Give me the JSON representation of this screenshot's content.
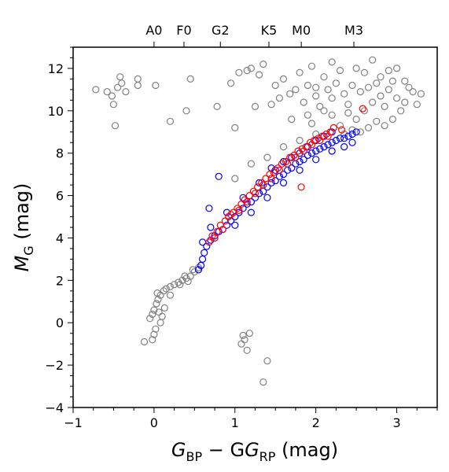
{
  "chart_data": {
    "type": "scatter",
    "title": "",
    "xlabel": {
      "main": "G",
      "sub1": "BP",
      "mid": " − G",
      "sub2": "RP",
      "unit": " (mag)"
    },
    "ylabel": {
      "main": "M",
      "sub": "G",
      "unit": " (mag)"
    },
    "xlim": [
      -1,
      3.5
    ],
    "ylim": [
      13,
      -4
    ],
    "x_ticks": [
      -1,
      0,
      1,
      2,
      3
    ],
    "x_tick_labels": [
      "−1",
      "0",
      "1",
      "2",
      "3"
    ],
    "y_ticks": [
      -4,
      -2,
      0,
      2,
      4,
      6,
      8,
      10,
      12
    ],
    "y_tick_labels": [
      "−4",
      "−2",
      "0",
      "2",
      "4",
      "6",
      "8",
      "10",
      "12"
    ],
    "top_ticks": [
      {
        "label": "A0",
        "x": 0.0
      },
      {
        "label": "F0",
        "x": 0.37
      },
      {
        "label": "G2",
        "x": 0.82
      },
      {
        "label": "K5",
        "x": 1.42
      },
      {
        "label": "M0",
        "x": 1.82
      },
      {
        "label": "M3",
        "x": 2.47
      }
    ],
    "grid": false,
    "marker": "open-circle",
    "series": [
      {
        "color": "#808080",
        "points": [
          [
            -0.12,
            -0.9
          ],
          [
            -0.02,
            -0.8
          ],
          [
            0.0,
            -0.55
          ],
          [
            0.02,
            -0.3
          ],
          [
            -0.05,
            0.2
          ],
          [
            0.08,
            0.0
          ],
          [
            0.1,
            0.3
          ],
          [
            -0.02,
            0.4
          ],
          [
            0.0,
            0.6
          ],
          [
            0.03,
            0.9
          ],
          [
            0.05,
            1.1
          ],
          [
            0.08,
            1.3
          ],
          [
            0.12,
            1.5
          ],
          [
            0.15,
            1.6
          ],
          [
            0.2,
            1.7
          ],
          [
            0.25,
            1.8
          ],
          [
            0.3,
            1.9
          ],
          [
            0.35,
            2.0
          ],
          [
            0.4,
            2.1
          ],
          [
            0.45,
            2.2
          ],
          [
            0.5,
            2.4
          ],
          [
            0.55,
            2.6
          ],
          [
            0.32,
            1.8
          ],
          [
            0.38,
            2.2
          ],
          [
            0.42,
            1.95
          ],
          [
            0.48,
            2.5
          ],
          [
            0.2,
            1.3
          ],
          [
            0.06,
            0.5
          ],
          [
            0.13,
            0.7
          ],
          [
            0.04,
            1.4
          ],
          [
            1.35,
            -2.8
          ],
          [
            1.4,
            -1.8
          ],
          [
            1.15,
            -1.3
          ],
          [
            1.08,
            -1.0
          ],
          [
            1.12,
            -0.8
          ],
          [
            1.18,
            -0.5
          ],
          [
            1.1,
            -0.6
          ],
          [
            -0.72,
            11.0
          ],
          [
            -0.58,
            10.9
          ],
          [
            -0.52,
            10.7
          ],
          [
            -0.5,
            10.3
          ],
          [
            -0.48,
            9.3
          ],
          [
            -0.45,
            11.1
          ],
          [
            -0.4,
            11.3
          ],
          [
            -0.42,
            11.6
          ],
          [
            -0.35,
            10.9
          ],
          [
            -0.2,
            11.2
          ],
          [
            -0.2,
            11.5
          ],
          [
            0.02,
            11.2
          ],
          [
            0.2,
            9.5
          ],
          [
            0.4,
            10.0
          ],
          [
            0.45,
            11.5
          ],
          [
            0.78,
            10.2
          ],
          [
            0.95,
            11.3
          ],
          [
            1.0,
            9.2
          ],
          [
            1.05,
            11.8
          ],
          [
            1.15,
            11.9
          ],
          [
            1.2,
            12.0
          ],
          [
            1.25,
            10.2
          ],
          [
            1.3,
            11.7
          ],
          [
            1.35,
            12.2
          ],
          [
            1.45,
            10.3
          ],
          [
            1.55,
            10.6
          ],
          [
            1.5,
            11.2
          ],
          [
            1.6,
            11.5
          ],
          [
            1.68,
            10.8
          ],
          [
            1.7,
            9.6
          ],
          [
            1.75,
            11.0
          ],
          [
            1.8,
            11.8
          ],
          [
            1.85,
            10.4
          ],
          [
            1.9,
            9.8
          ],
          [
            1.95,
            12.1
          ],
          [
            2.0,
            11.1
          ],
          [
            2.05,
            10.2
          ],
          [
            2.1,
            11.6
          ],
          [
            2.2,
            12.3
          ],
          [
            2.3,
            11.9
          ],
          [
            2.4,
            9.9
          ],
          [
            2.5,
            12.0
          ],
          [
            2.6,
            11.8
          ],
          [
            2.7,
            12.4
          ],
          [
            2.8,
            11.6
          ],
          [
            2.9,
            11.9
          ],
          [
            3.0,
            12.0
          ],
          [
            3.1,
            11.4
          ],
          [
            3.2,
            10.9
          ],
          [
            3.3,
            10.8
          ],
          [
            3.25,
            10.3
          ],
          [
            3.05,
            10.0
          ],
          [
            2.95,
            9.6
          ],
          [
            2.85,
            9.3
          ],
          [
            2.75,
            9.5
          ],
          [
            2.65,
            9.2
          ],
          [
            2.55,
            9.0
          ],
          [
            2.45,
            9.1
          ],
          [
            2.35,
            8.9
          ],
          [
            2.3,
            9.3
          ],
          [
            2.5,
            9.6
          ],
          [
            2.6,
            10.0
          ],
          [
            2.7,
            10.4
          ],
          [
            2.8,
            10.7
          ],
          [
            2.9,
            11.0
          ],
          [
            2.4,
            10.3
          ],
          [
            2.2,
            10.6
          ],
          [
            2.1,
            10.0
          ],
          [
            2.15,
            11.0
          ],
          [
            2.25,
            11.3
          ],
          [
            2.35,
            10.8
          ],
          [
            2.45,
            11.2
          ],
          [
            2.55,
            10.9
          ],
          [
            2.65,
            11.1
          ],
          [
            2.75,
            11.3
          ],
          [
            2.85,
            10.2
          ],
          [
            3.0,
            10.6
          ],
          [
            3.1,
            10.4
          ],
          [
            3.15,
            11.1
          ],
          [
            2.95,
            11.4
          ],
          [
            2.0,
            10.7
          ],
          [
            1.9,
            11.2
          ],
          [
            1.95,
            9.4
          ],
          [
            2.2,
            9.8
          ],
          [
            1.0,
            6.8
          ],
          [
            1.2,
            7.5
          ],
          [
            1.4,
            7.8
          ],
          [
            1.6,
            8.3
          ],
          [
            1.8,
            8.6
          ],
          [
            2.0,
            8.9
          ]
        ]
      },
      {
        "color": "#0000ff",
        "points": [
          [
            0.55,
            2.5
          ],
          [
            0.58,
            2.7
          ],
          [
            0.6,
            3.0
          ],
          [
            0.62,
            3.3
          ],
          [
            0.65,
            3.6
          ],
          [
            0.7,
            3.9
          ],
          [
            0.75,
            4.1
          ],
          [
            0.8,
            4.3
          ],
          [
            0.85,
            4.4
          ],
          [
            0.9,
            4.6
          ],
          [
            0.95,
            4.8
          ],
          [
            1.0,
            5.0
          ],
          [
            1.05,
            5.2
          ],
          [
            1.1,
            5.4
          ],
          [
            1.15,
            5.6
          ],
          [
            1.2,
            5.7
          ],
          [
            1.25,
            5.9
          ],
          [
            1.3,
            6.1
          ],
          [
            1.35,
            6.2
          ],
          [
            1.4,
            6.4
          ],
          [
            1.45,
            6.6
          ],
          [
            1.5,
            6.7
          ],
          [
            1.55,
            6.9
          ],
          [
            1.6,
            7.0
          ],
          [
            1.65,
            7.2
          ],
          [
            1.7,
            7.3
          ],
          [
            1.75,
            7.5
          ],
          [
            1.8,
            7.6
          ],
          [
            1.85,
            7.7
          ],
          [
            1.9,
            7.9
          ],
          [
            1.95,
            8.0
          ],
          [
            2.0,
            8.1
          ],
          [
            2.05,
            8.2
          ],
          [
            2.1,
            8.3
          ],
          [
            2.15,
            8.4
          ],
          [
            2.2,
            8.5
          ],
          [
            2.25,
            8.6
          ],
          [
            2.3,
            8.7
          ],
          [
            2.35,
            8.7
          ],
          [
            2.4,
            8.8
          ],
          [
            2.45,
            8.9
          ],
          [
            2.5,
            9.0
          ],
          [
            0.68,
            5.4
          ],
          [
            0.8,
            6.9
          ],
          [
            0.6,
            3.8
          ],
          [
            0.7,
            4.5
          ],
          [
            0.9,
            5.2
          ],
          [
            1.1,
            5.9
          ],
          [
            1.3,
            6.6
          ],
          [
            1.5,
            7.2
          ],
          [
            1.7,
            7.8
          ],
          [
            1.9,
            8.3
          ],
          [
            2.1,
            8.8
          ],
          [
            1.45,
            7.3
          ],
          [
            1.6,
            7.6
          ],
          [
            1.8,
            8.0
          ],
          [
            2.0,
            8.6
          ],
          [
            2.2,
            9.0
          ],
          [
            1.0,
            4.6
          ],
          [
            1.2,
            5.2
          ],
          [
            1.4,
            5.9
          ],
          [
            1.6,
            6.6
          ],
          [
            1.8,
            7.2
          ],
          [
            2.0,
            7.7
          ],
          [
            2.2,
            8.1
          ],
          [
            2.35,
            8.3
          ],
          [
            2.45,
            8.5
          ]
        ]
      },
      {
        "color": "#ff0000",
        "points": [
          [
            0.68,
            3.8
          ],
          [
            0.72,
            4.1
          ],
          [
            0.78,
            4.3
          ],
          [
            0.82,
            4.6
          ],
          [
            0.88,
            4.8
          ],
          [
            0.92,
            5.0
          ],
          [
            0.98,
            5.2
          ],
          [
            1.03,
            5.4
          ],
          [
            1.08,
            5.6
          ],
          [
            1.12,
            5.8
          ],
          [
            1.18,
            6.0
          ],
          [
            1.23,
            6.2
          ],
          [
            1.28,
            6.4
          ],
          [
            1.33,
            6.6
          ],
          [
            1.38,
            6.8
          ],
          [
            1.43,
            7.0
          ],
          [
            1.48,
            7.1
          ],
          [
            1.53,
            7.3
          ],
          [
            1.58,
            7.5
          ],
          [
            1.63,
            7.6
          ],
          [
            1.68,
            7.8
          ],
          [
            1.73,
            7.9
          ],
          [
            1.78,
            8.1
          ],
          [
            1.83,
            8.2
          ],
          [
            1.88,
            8.3
          ],
          [
            1.93,
            8.5
          ],
          [
            1.98,
            8.6
          ],
          [
            2.03,
            8.7
          ],
          [
            2.08,
            8.8
          ],
          [
            2.13,
            8.9
          ],
          [
            2.18,
            9.0
          ],
          [
            1.82,
            6.4
          ],
          [
            2.22,
            9.2
          ],
          [
            2.32,
            9.1
          ],
          [
            2.58,
            10.1
          ],
          [
            0.75,
            4.0
          ],
          [
            0.85,
            4.4
          ],
          [
            0.95,
            5.1
          ],
          [
            1.05,
            5.3
          ],
          [
            1.15,
            5.7
          ],
          [
            1.25,
            6.1
          ],
          [
            1.35,
            6.5
          ],
          [
            1.45,
            6.8
          ],
          [
            1.55,
            7.2
          ],
          [
            1.65,
            7.5
          ],
          [
            1.75,
            7.8
          ],
          [
            1.85,
            8.1
          ],
          [
            1.95,
            8.4
          ],
          [
            2.05,
            8.6
          ],
          [
            2.15,
            8.8
          ]
        ]
      }
    ]
  }
}
